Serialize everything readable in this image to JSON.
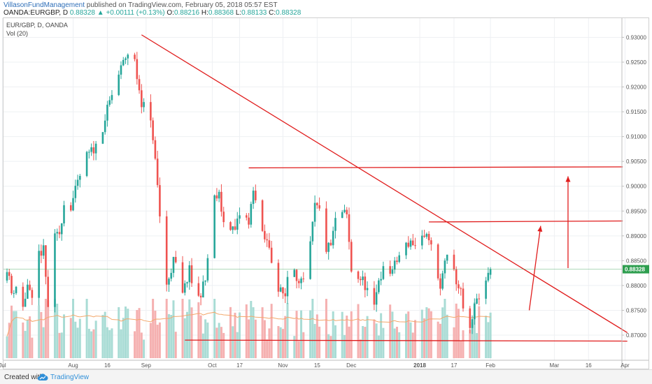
{
  "header": {
    "author": "VillasonFundManagement",
    "published": "published on TradingView.com, February 05, 2018 05:57 EST",
    "symbol": "OANDA:EURGBP, D",
    "last": "0.88328",
    "change_arrow": "▲",
    "change": "+0.00111 (+0.13%)",
    "o_label": "O:",
    "o": "0.88216",
    "h_label": "H:",
    "h": "0.88368",
    "l_label": "L:",
    "l": "0.88133",
    "c_label": "C:",
    "c": "0.88328"
  },
  "legend": {
    "series": "EUR/GBP, D, OANDA",
    "volume": "Vol (20)"
  },
  "footer": {
    "created": "Created with",
    "brand": "TradingView"
  },
  "colors": {
    "up": "#26a69a",
    "down": "#ef5350",
    "up_vol": "#a9dcd5",
    "down_vol": "#f5b0b0",
    "drawing": "#e01c1c",
    "price_label_bg": "#2e9e4f",
    "volume_ma": "#f3a76b"
  },
  "chart_data": {
    "type": "candlestick",
    "ylim": [
      0.8655,
      0.934
    ],
    "yticks": [
      "0.93000",
      "0.92500",
      "0.92000",
      "0.91500",
      "0.91000",
      "0.90500",
      "0.90000",
      "0.89500",
      "0.89000",
      "0.88500",
      "0.88000",
      "0.87500",
      "0.87000"
    ],
    "yvalues": [
      0.93,
      0.925,
      0.92,
      0.915,
      0.91,
      0.905,
      0.9,
      0.895,
      0.89,
      0.885,
      0.88,
      0.875,
      0.87
    ],
    "xticks": [
      "Jul",
      "Aug",
      "16",
      "Sep",
      "Oct",
      "17",
      "Nov",
      "15",
      "Dec",
      "2018",
      "17",
      "Feb",
      "Mar",
      "16",
      "Apr"
    ],
    "xtick_days": [
      -2,
      29,
      44,
      61,
      90,
      102,
      121,
      136,
      151,
      181,
      196,
      212,
      240,
      255,
      271
    ],
    "last_price_label": "0.88328",
    "last_price": 0.88328,
    "trendlines": [
      {
        "x1": 59,
        "y1": 0.9305,
        "x2": 272,
        "y2": 0.8705
      },
      {
        "x1": 106,
        "y1": 0.9037,
        "x2": 270,
        "y2": 0.9039
      },
      {
        "x1": 185,
        "y1": 0.8928,
        "x2": 270,
        "y2": 0.893
      },
      {
        "x1": 78,
        "y1": 0.869,
        "x2": 272,
        "y2": 0.8688
      }
    ],
    "arrows": [
      {
        "x1": 229,
        "y1": 0.875,
        "x2": 234,
        "y2": 0.892
      },
      {
        "x1": 246,
        "y1": 0.8835,
        "x2": 246,
        "y2": 0.902
      }
    ],
    "candles": []
  }
}
